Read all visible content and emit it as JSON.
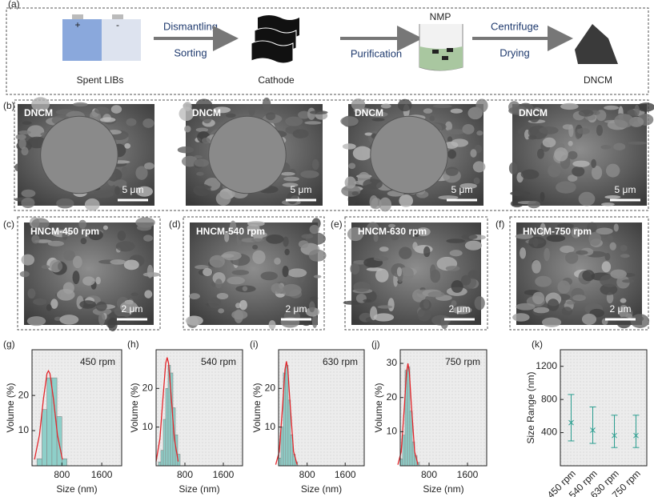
{
  "panel_a": {
    "label": "(a)",
    "plus": "+",
    "minus": "-",
    "spent": "Spent LIBs",
    "dismantling": "Dismantling",
    "sorting": "Sorting",
    "cathode": "Cathode",
    "purification": "Purification",
    "nmp": "NMP",
    "centrifuge": "Centrifuge",
    "drying": "Drying",
    "product": "DNCM"
  },
  "panel_b": {
    "label": "(b)",
    "images": [
      {
        "label": "DNCM",
        "scale": "5 μm"
      },
      {
        "label": "DNCM",
        "scale": "5 μm"
      },
      {
        "label": "DNCM",
        "scale": "5 μm"
      },
      {
        "label": "DNCM",
        "scale": "5 μm"
      }
    ]
  },
  "panels_cf": [
    {
      "label": "(c)",
      "image_label": "HNCM-450 rpm",
      "scale": "2 μm"
    },
    {
      "label": "(d)",
      "image_label": "HNCM-540 rpm",
      "scale": "2 μm"
    },
    {
      "label": "(e)",
      "image_label": "HNCM-630 rpm",
      "scale": "2 μm"
    },
    {
      "label": "(f)",
      "image_label": "HNCM-750 rpm",
      "scale": "2 μm"
    }
  ],
  "chart_data": [
    {
      "type": "histogram",
      "panel_label": "(g)",
      "annotation": "450 rpm",
      "x_label": "Size (nm)",
      "y_label": "Volume (%)",
      "bins": [
        300,
        400,
        500,
        600,
        700,
        800,
        900
      ],
      "values": [
        2,
        16,
        25,
        25,
        14,
        2
      ],
      "color": "#8ecfc9",
      "xlim": [
        200,
        2000
      ],
      "xticks": [
        800,
        1600
      ],
      "ylim": [
        0,
        33
      ],
      "yticks": [
        10,
        20
      ],
      "fit": {
        "color": "#e3262b",
        "x": [
          250,
          350,
          430,
          500,
          530,
          560,
          630,
          710,
          810
        ],
        "values": [
          1.8,
          8.8,
          19.1,
          26.2,
          27,
          26.2,
          19.1,
          8.8,
          1.8
        ]
      }
    },
    {
      "type": "histogram",
      "panel_label": "(h)",
      "annotation": "540 rpm",
      "x_label": "Size (nm)",
      "y_label": "Volume (%)",
      "bins": [
        250,
        300,
        350,
        400,
        450,
        500,
        550,
        600,
        650,
        700
      ],
      "values": [
        1,
        4,
        12,
        20,
        26,
        24,
        15,
        8,
        3
      ],
      "color": "#8ecfc9",
      "xlim": [
        200,
        2000
      ],
      "xticks": [
        800,
        1600
      ],
      "ylim": [
        0,
        30
      ],
      "yticks": [
        10,
        20
      ],
      "fit": {
        "color": "#e3262b",
        "x": [
          200,
          280,
          340,
          400,
          430,
          460,
          520,
          580,
          660
        ],
        "values": [
          1.1,
          7,
          17,
          26.5,
          28,
          26.5,
          17,
          7,
          1.1
        ]
      }
    },
    {
      "type": "histogram",
      "panel_label": "(i)",
      "annotation": "630 rpm",
      "x_label": "Size (nm)",
      "y_label": "Volume (%)",
      "bins": [
        200,
        250,
        300,
        350,
        400,
        450,
        500,
        550,
        600
      ],
      "values": [
        2,
        10,
        24,
        26,
        17,
        8,
        3,
        1
      ],
      "color": "#8ecfc9",
      "xlim": [
        200,
        2000
      ],
      "xticks": [
        800,
        1600
      ],
      "ylim": [
        0,
        30
      ],
      "yticks": [
        10,
        20
      ],
      "fit": {
        "color": "#e3262b",
        "x": [
          140,
          215,
          290,
          335,
          365,
          395,
          440,
          515,
          590
        ],
        "values": [
          0.3,
          3.7,
          16.4,
          24.9,
          27,
          24.9,
          16.4,
          3.7,
          0.3
        ]
      }
    },
    {
      "type": "histogram",
      "panel_label": "(j)",
      "annotation": "750 rpm",
      "x_label": "Size (nm)",
      "y_label": "Volume (%)",
      "bins": [
        200,
        250,
        300,
        350,
        400,
        450,
        500,
        550,
        600
      ],
      "values": [
        2,
        9,
        28,
        29,
        16,
        7,
        3,
        1
      ],
      "color": "#8ecfc9",
      "xlim": [
        200,
        2000
      ],
      "xticks": [
        800,
        1600
      ],
      "ylim": [
        0,
        34
      ],
      "yticks": [
        10,
        20,
        30
      ],
      "fit": {
        "color": "#e3262b",
        "x": [
          150,
          220,
          290,
          330,
          360,
          390,
          430,
          500,
          570
        ],
        "values": [
          0.3,
          4.1,
          18.2,
          27.4,
          30,
          27.4,
          18.2,
          4.1,
          0.3
        ]
      }
    },
    {
      "type": "errorbar",
      "panel_label": "(k)",
      "y_label": "Size Range (nm)",
      "categories": [
        "450 rpm",
        "540 rpm",
        "630 rpm",
        "750 rpm"
      ],
      "values": [
        520,
        430,
        365,
        365
      ],
      "low": [
        300,
        270,
        220,
        220
      ],
      "high": [
        860,
        710,
        610,
        610
      ],
      "color": "#2a9d8f",
      "ylim": [
        0,
        1400
      ],
      "yticks": [
        400,
        800,
        1200
      ]
    }
  ]
}
